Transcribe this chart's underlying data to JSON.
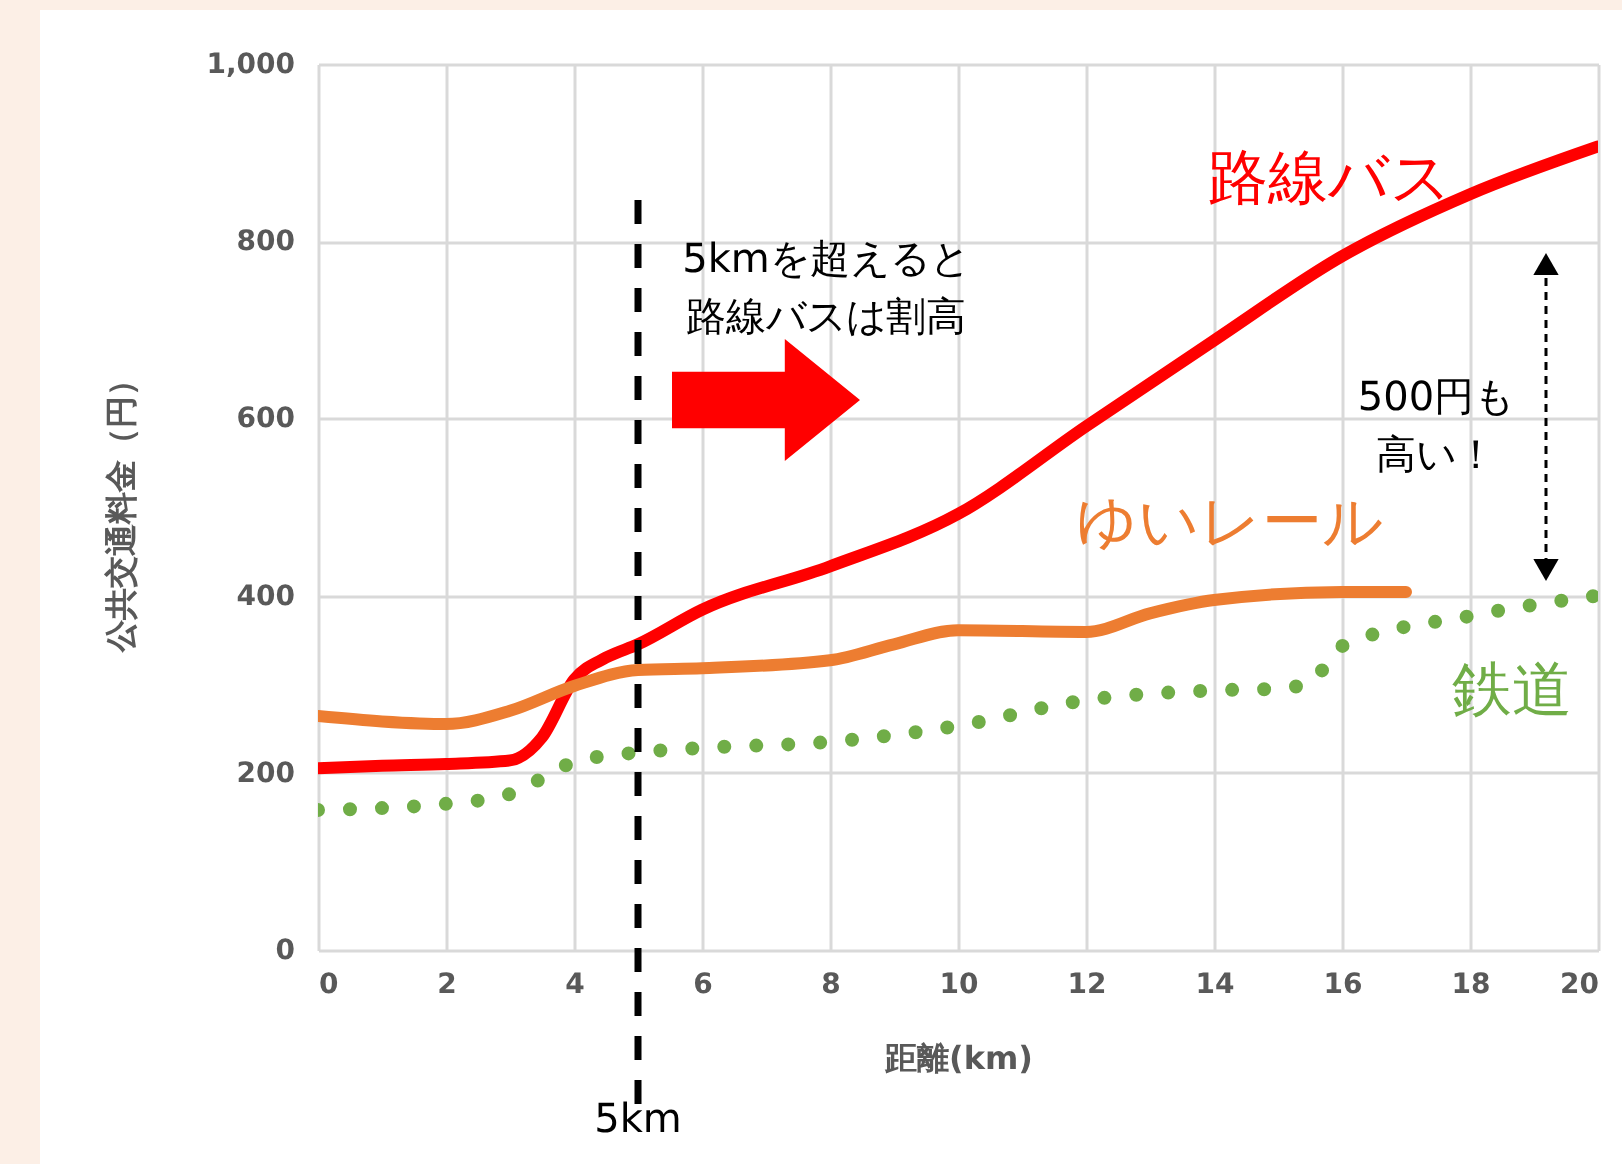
{
  "chart_data": {
    "type": "line",
    "xlabel": "距離(km)",
    "ylabel": "公共交通料金（円）",
    "xlim": [
      0,
      20
    ],
    "xticks": [
      0,
      2,
      4,
      6,
      8,
      10,
      12,
      14,
      16,
      18,
      20
    ],
    "ylim": [
      0,
      1000
    ],
    "yticks": [
      0,
      200,
      400,
      600,
      800,
      {
        "value": 1000,
        "label": "1,000"
      }
    ],
    "grid": true,
    "legend": false,
    "marker": "none",
    "series": [
      {
        "name": "路線バス",
        "color": "#ff0000",
        "line_style": "solid",
        "x": [
          0,
          1,
          2,
          3,
          3.5,
          4,
          4.5,
          5,
          6,
          8,
          10,
          12,
          14,
          16,
          18,
          20
        ],
        "values": [
          205,
          208,
          210,
          214,
          240,
          305,
          330,
          345,
          384,
          433,
          492,
          591,
          688,
          783,
          853,
          907
        ]
      },
      {
        "name": "ゆいレール",
        "color": "#ed7d31",
        "line_style": "solid",
        "x": [
          0,
          1,
          2,
          3,
          4,
          5,
          6,
          8,
          9,
          10,
          12,
          13,
          14,
          16,
          17
        ],
        "values": [
          264,
          258,
          255,
          270,
          298,
          316,
          318,
          327,
          345,
          361,
          359,
          380,
          395,
          404,
          404
        ]
      },
      {
        "name": "鉄道",
        "color": "#70ad47",
        "line_style": "dotted",
        "x": [
          0,
          2,
          3,
          4,
          5,
          6,
          8,
          10,
          12,
          14,
          15,
          15.5,
          16,
          18,
          20
        ],
        "values": [
          158,
          165,
          176,
          212,
          223,
          228,
          235,
          253,
          282,
          293,
          295,
          302,
          343,
          377,
          400
        ]
      }
    ],
    "ref_lines": [
      {
        "axis": "x",
        "value": 5,
        "label": "5km",
        "color": "#000000",
        "line_style": "dashed"
      }
    ],
    "annotations": [
      "5kmを超えると路線バスは割高",
      "500円も高い！"
    ]
  }
}
